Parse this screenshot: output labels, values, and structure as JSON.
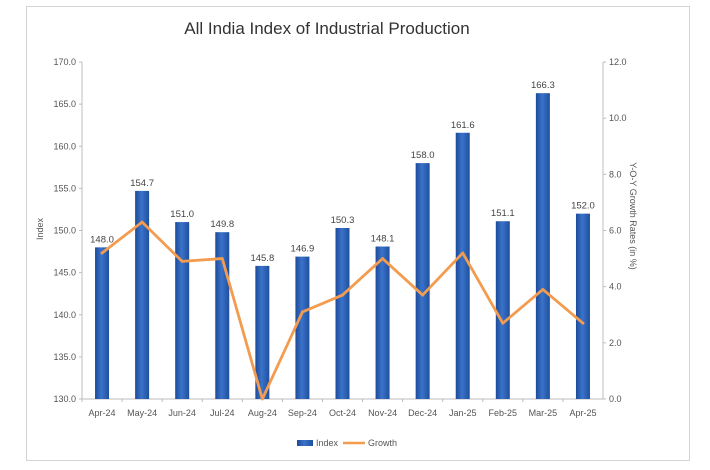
{
  "chart_data": {
    "type": "bar",
    "title": "All India Index of Industrial Production",
    "categories": [
      "Apr-24",
      "May-24",
      "Jun-24",
      "Jul-24",
      "Aug-24",
      "Sep-24",
      "Oct-24",
      "Nov-24",
      "Dec-24",
      "Jan-25",
      "Feb-25",
      "Mar-25",
      "Apr-25"
    ],
    "series": [
      {
        "name": "Index",
        "type": "bar",
        "axis": "left",
        "values": [
          148.0,
          154.7,
          151.0,
          149.8,
          145.8,
          146.9,
          150.3,
          148.1,
          158.0,
          161.6,
          151.1,
          166.3,
          152.0
        ],
        "labels": [
          "148.0",
          "154.7",
          "151.0",
          "149.8",
          "145.8",
          "146.9",
          "150.3",
          "148.1",
          "158.0",
          "161.6",
          "151.1",
          "166.3",
          "152.0"
        ],
        "color": "#2f5fb3"
      },
      {
        "name": "Growth",
        "type": "line",
        "axis": "right",
        "values": [
          5.2,
          6.3,
          4.9,
          5.0,
          0.0,
          3.1,
          3.7,
          5.0,
          3.7,
          5.2,
          2.7,
          3.9,
          2.7
        ],
        "color": "#f39c4f"
      }
    ],
    "ylabel": "Index",
    "ylabel_right": "Y-O-Y Growth Rates (in %)",
    "ylim": [
      130,
      170
    ],
    "yticks": [
      "130.0",
      "135.0",
      "140.0",
      "145.0",
      "150.0",
      "155.0",
      "160.0",
      "165.0",
      "170.0"
    ],
    "ylim_right": [
      0,
      12
    ],
    "yticks_right": [
      "0.0",
      "2.0",
      "4.0",
      "6.0",
      "8.0",
      "10.0",
      "12.0"
    ],
    "grid": false,
    "legend_position": "bottom"
  }
}
